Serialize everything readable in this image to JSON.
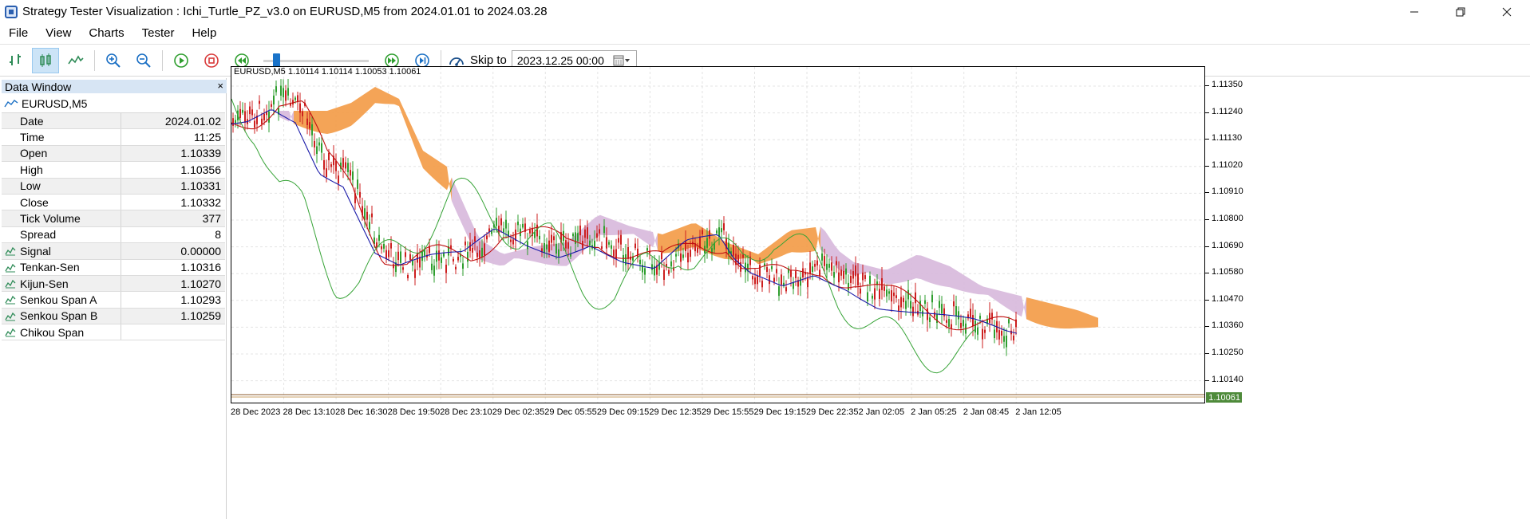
{
  "window": {
    "title": "Strategy Tester Visualization : Ichi_Turtle_PZ_v3.0 on EURUSD,M5 from 2024.01.01 to 2024.03.28"
  },
  "menu": [
    "File",
    "View",
    "Charts",
    "Tester",
    "Help"
  ],
  "toolbar": {
    "skip_label": "Skip to",
    "skip_value": "2023.12.25 00:00",
    "speed_level": 0.1
  },
  "data_window": {
    "title": "Data Window",
    "close": "×",
    "symbol": "EURUSD,M5",
    "rows": [
      {
        "name": "Date",
        "value": "2024.01.02"
      },
      {
        "name": "Time",
        "value": "11:25"
      },
      {
        "name": "Open",
        "value": "1.10339"
      },
      {
        "name": "High",
        "value": "1.10356"
      },
      {
        "name": "Low",
        "value": "1.10331"
      },
      {
        "name": "Close",
        "value": "1.10332"
      },
      {
        "name": "Tick Volume",
        "value": "377"
      },
      {
        "name": "Spread",
        "value": "8"
      },
      {
        "name": "Signal",
        "value": "0.00000"
      },
      {
        "name": "Tenkan-Sen",
        "value": "1.10316"
      },
      {
        "name": "Kijun-Sen",
        "value": "1.10270"
      },
      {
        "name": "Senkou Span A",
        "value": "1.10293"
      },
      {
        "name": "Senkou Span B",
        "value": "1.10259"
      },
      {
        "name": "Chikou Span",
        "value": ""
      }
    ]
  },
  "chart": {
    "info": "EURUSD,M5  1.10114 1.10114 1.10053 1.10061",
    "last_price": "1.10061",
    "price_labels": [
      "1.11350",
      "1.11240",
      "1.11130",
      "1.11020",
      "1.10910",
      "1.10800",
      "1.10690",
      "1.10580",
      "1.10470",
      "1.10360",
      "1.10250",
      "1.10140"
    ],
    "time_labels": [
      "28 Dec 2023",
      "28 Dec 13:10",
      "28 Dec 16:30",
      "28 Dec 19:50",
      "28 Dec 23:10",
      "29 Dec 02:35",
      "29 Dec 05:55",
      "29 Dec 09:15",
      "29 Dec 12:35",
      "29 Dec 15:55",
      "29 Dec 19:15",
      "29 Dec 22:35",
      "2 Jan 02:05",
      "2 Jan 05:25",
      "2 Jan 08:45",
      "2 Jan 12:05"
    ],
    "colors": {
      "bull": "#2e9e2e",
      "bear": "#cc1f1f",
      "tenkan": "#c01010",
      "kijun": "#1a1aa8",
      "chikou": "#36a336",
      "cloud_up": "#f39a45",
      "cloud_down": "#d7b8dc",
      "price_line": "#8b5a2b"
    }
  }
}
